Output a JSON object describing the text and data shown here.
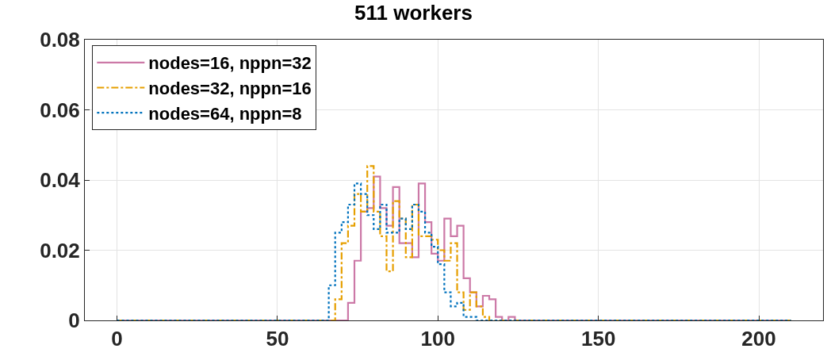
{
  "chart_data": {
    "type": "histogram",
    "title": "511 workers",
    "bins": [
      0,
      2,
      4,
      6,
      8,
      10,
      12,
      14,
      16,
      18,
      20,
      22,
      24,
      26,
      28,
      30,
      32,
      34,
      36,
      38,
      40,
      42,
      44,
      46,
      48,
      50,
      52,
      54,
      56,
      58,
      60,
      62,
      64,
      66,
      68,
      70,
      72,
      74,
      76,
      78,
      80,
      82,
      84,
      86,
      88,
      90,
      92,
      94,
      96,
      98,
      100,
      102,
      104,
      106,
      108,
      110,
      112,
      114,
      116,
      118,
      120,
      122,
      124,
      126,
      128,
      130,
      132,
      134,
      136,
      138,
      140,
      142,
      144,
      146,
      148,
      150,
      152,
      154,
      156,
      158,
      160,
      162,
      164,
      166,
      168,
      170,
      172,
      174,
      176,
      178,
      180,
      182,
      184,
      186,
      188,
      190,
      192,
      194,
      196,
      198,
      200,
      202,
      204,
      206,
      208,
      210
    ],
    "series": [
      {
        "name": "nodes=16, nppn=32",
        "color": "#cc79a7",
        "line_style": "solid",
        "values": [
          0,
          0,
          0,
          0,
          0,
          0,
          0,
          0,
          0,
          0,
          0,
          0,
          0,
          0,
          0,
          0,
          0,
          0,
          0,
          0,
          0,
          0,
          0,
          0,
          0,
          0,
          0,
          0,
          0,
          0,
          0,
          0,
          0,
          0,
          0,
          0,
          0.005,
          0.017,
          0.031,
          0.032,
          0.041,
          0.032,
          0.027,
          0.038,
          0.022,
          0.022,
          0.018,
          0.039,
          0.028,
          0.019,
          0.017,
          0.029,
          0.024,
          0.027,
          0.012,
          0.008,
          0.004,
          0.007,
          0.006,
          0.001,
          0,
          0.001,
          0,
          0,
          0,
          0,
          0,
          0,
          0,
          0,
          0,
          0,
          0,
          0,
          0,
          0,
          0,
          0,
          0,
          0,
          0,
          0,
          0,
          0,
          0,
          0,
          0,
          0,
          0,
          0,
          0,
          0,
          0,
          0,
          0,
          0,
          0,
          0,
          0,
          0,
          0,
          0,
          0,
          0,
          0
        ]
      },
      {
        "name": "nodes=32, nppn=16",
        "color": "#e69f00",
        "line_style": "dashed",
        "values": [
          0,
          0,
          0,
          0,
          0,
          0,
          0,
          0,
          0,
          0,
          0,
          0,
          0,
          0,
          0,
          0,
          0,
          0,
          0,
          0,
          0,
          0,
          0,
          0,
          0,
          0,
          0,
          0,
          0,
          0,
          0,
          0,
          0,
          0,
          0.006,
          0.022,
          0.027,
          0.036,
          0.031,
          0.044,
          0.031,
          0.024,
          0.014,
          0.034,
          0.029,
          0.018,
          0.033,
          0.024,
          0.024,
          0.023,
          0.02,
          0.017,
          0.022,
          0.008,
          0.003,
          0.008,
          0.004,
          0.001,
          0,
          0,
          0,
          0,
          0,
          0,
          0,
          0,
          0,
          0,
          0,
          0,
          0,
          0,
          0,
          0,
          0,
          0,
          0,
          0,
          0,
          0,
          0,
          0,
          0,
          0,
          0,
          0,
          0,
          0,
          0,
          0,
          0,
          0,
          0,
          0,
          0,
          0,
          0,
          0,
          0,
          0,
          0,
          0,
          0,
          0,
          0
        ]
      },
      {
        "name": "nodes=64, nppn=8",
        "color": "#0072bd",
        "line_style": "dotted",
        "values": [
          0,
          0,
          0,
          0,
          0,
          0,
          0,
          0,
          0,
          0,
          0,
          0,
          0,
          0,
          0,
          0,
          0,
          0,
          0,
          0,
          0,
          0,
          0,
          0,
          0,
          0,
          0,
          0,
          0,
          0,
          0,
          0,
          0,
          0.01,
          0.025,
          0.028,
          0.033,
          0.039,
          0.036,
          0.03,
          0.026,
          0.033,
          0.025,
          0.025,
          0.029,
          0.026,
          0.033,
          0.031,
          0.025,
          0.021,
          0.016,
          0.008,
          0.004,
          0.005,
          0.001,
          0.001,
          0,
          0,
          0,
          0,
          0,
          0,
          0,
          0,
          0,
          0,
          0,
          0,
          0,
          0,
          0,
          0,
          0,
          0,
          0,
          0,
          0,
          0,
          0,
          0,
          0,
          0,
          0,
          0,
          0,
          0,
          0,
          0,
          0,
          0,
          0,
          0,
          0,
          0,
          0,
          0,
          0,
          0,
          0,
          0,
          0,
          0,
          0,
          0,
          0
        ]
      }
    ],
    "xlim": [
      -10,
      220
    ],
    "xticks": [
      0,
      50,
      100,
      150,
      200
    ],
    "ylim": [
      0,
      0.08
    ],
    "yticks": [
      0,
      0.02,
      0.04,
      0.06,
      0.08
    ],
    "grid": true,
    "legend": "top left"
  }
}
